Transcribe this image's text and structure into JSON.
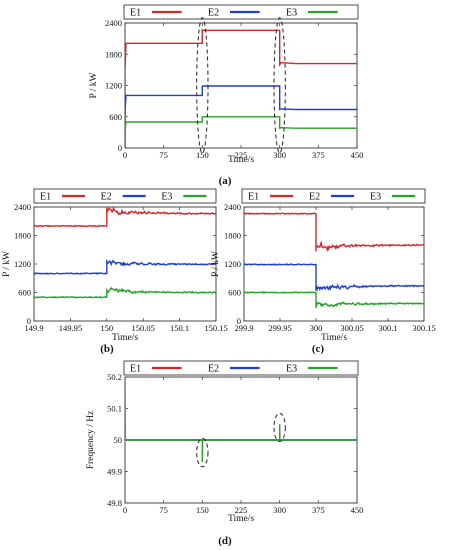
{
  "chart_data": [
    {
      "type": "line",
      "caption": "(a)",
      "xlabel": "Time/s",
      "ylabel": "P / kW",
      "xlim": [
        0,
        450
      ],
      "ylim": [
        0,
        2400
      ],
      "xticks": [
        0,
        75,
        150,
        225,
        300,
        375,
        450
      ],
      "yticks": [
        0,
        600,
        1200,
        1800,
        2400
      ],
      "legend_position": "top",
      "series": [
        {
          "name": "E1",
          "color": "#d62728",
          "x": [
            0,
            0,
            2,
            150,
            150,
            151,
            300,
            300,
            303,
            330,
            450
          ],
          "y": [
            0,
            1500,
            2010,
            2010,
            2280,
            2260,
            2260,
            1600,
            1640,
            1620,
            1620
          ]
        },
        {
          "name": "E2",
          "color": "#1f3fcf",
          "x": [
            0,
            0,
            2,
            150,
            150,
            151,
            300,
            300,
            303,
            330,
            450
          ],
          "y": [
            0,
            700,
            1010,
            1010,
            1180,
            1190,
            1190,
            740,
            750,
            740,
            740
          ]
        },
        {
          "name": "E3",
          "color": "#2ca02c",
          "x": [
            0,
            0,
            2,
            150,
            150,
            151,
            300,
            300,
            303,
            330,
            450
          ],
          "y": [
            0,
            350,
            500,
            500,
            590,
            600,
            600,
            380,
            390,
            380,
            380
          ]
        }
      ],
      "annotations": [
        {
          "shape": "dashed-ellipse",
          "cx": 150,
          "cy": 1200,
          "rx": 11,
          "ry": 1300
        },
        {
          "shape": "dashed-ellipse",
          "cx": 300,
          "cy": 1200,
          "rx": 11,
          "ry": 1300
        }
      ]
    },
    {
      "type": "line",
      "caption": "(b)",
      "xlabel": "Time/s",
      "ylabel": "P / kW",
      "xlim": [
        149.9,
        150.15
      ],
      "ylim": [
        0,
        2400
      ],
      "xticks": [
        149.9,
        149.95,
        150,
        150.05,
        150.1,
        150.15
      ],
      "xticklabels": [
        "149.9",
        "149.95",
        "150",
        "150.05",
        "150.1",
        "150.15"
      ],
      "yticks": [
        0,
        600,
        1200,
        1800,
        2400
      ],
      "legend_position": "top",
      "series": [
        {
          "name": "E1",
          "color": "#d62728",
          "base": 2000,
          "step": 2260,
          "osc": 130
        },
        {
          "name": "E2",
          "color": "#1f3fcf",
          "base": 1000,
          "step": 1190,
          "osc": 110
        },
        {
          "name": "E3",
          "color": "#2ca02c",
          "base": 500,
          "step": 600,
          "osc": 90
        }
      ]
    },
    {
      "type": "line",
      "caption": "(c)",
      "xlabel": "Time/s",
      "ylabel": "P / kW",
      "xlim": [
        299.9,
        300.15
      ],
      "ylim": [
        0,
        2400
      ],
      "xticks": [
        299.9,
        299.95,
        300,
        300.05,
        300.1,
        300.15
      ],
      "xticklabels": [
        "299.9",
        "299.95",
        "300",
        "300.05",
        "300.1",
        "300.15"
      ],
      "yticks": [
        0,
        600,
        1200,
        1800,
        2400
      ],
      "legend_position": "top",
      "series": [
        {
          "name": "E1",
          "color": "#d62728",
          "base": 2260,
          "step": 1600,
          "osc": 150
        },
        {
          "name": "E2",
          "color": "#1f3fcf",
          "base": 1190,
          "step": 740,
          "osc": 120
        },
        {
          "name": "E3",
          "color": "#2ca02c",
          "base": 600,
          "step": 370,
          "osc": 110
        }
      ]
    },
    {
      "type": "line",
      "caption": "(d)",
      "xlabel": "Time/s",
      "ylabel": "Frequency / Hz",
      "xlim": [
        0,
        450
      ],
      "ylim": [
        49.8,
        50.2
      ],
      "xticks": [
        0,
        75,
        150,
        225,
        300,
        375,
        450
      ],
      "yticks": [
        49.8,
        49.9,
        50,
        50.1,
        50.2
      ],
      "yticklabels": [
        "49.8",
        "49.9",
        "50",
        "50.1",
        "50.2"
      ],
      "legend_position": "top",
      "series": [
        {
          "name": "E1",
          "color": "#d62728",
          "x": [
            0,
            450
          ],
          "y": [
            50,
            50
          ]
        },
        {
          "name": "E2",
          "color": "#1f3fcf",
          "x": [
            0,
            450
          ],
          "y": [
            50,
            50
          ]
        },
        {
          "name": "E3",
          "color": "#2ca02c",
          "x": [
            0,
            0,
            0.5,
            150,
            150,
            150.5,
            300,
            300,
            300.5,
            450
          ],
          "y": [
            50.2,
            50.2,
            50,
            50,
            49.93,
            50,
            50,
            50.05,
            50,
            50
          ]
        }
      ],
      "annotations": [
        {
          "shape": "dashed-ellipse",
          "cx": 150,
          "cy": 49.96,
          "rx": 11,
          "ry": 0.045
        },
        {
          "shape": "dashed-ellipse",
          "cx": 300,
          "cy": 50.04,
          "rx": 11,
          "ry": 0.045
        }
      ]
    }
  ]
}
